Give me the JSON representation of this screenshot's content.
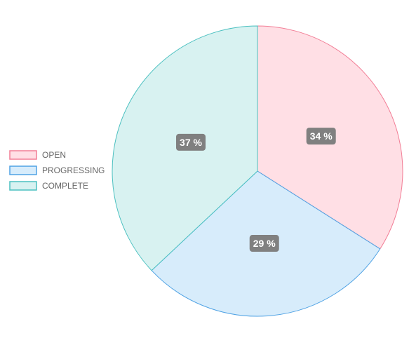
{
  "chart_data": {
    "type": "pie",
    "legend_position": "left",
    "categories": [
      "OPEN",
      "PROGRESSING",
      "COMPLETE"
    ],
    "values": [
      34,
      29,
      37
    ],
    "value_labels": [
      "34 %",
      "29 %",
      "37 %"
    ],
    "fill_colors": [
      "#ffdfe5",
      "#d7ecfb",
      "#d8f2f1"
    ],
    "border_colors": [
      "#f27e96",
      "#4fa2e4",
      "#4bc0c0"
    ],
    "label_bg_color": "#808080"
  }
}
